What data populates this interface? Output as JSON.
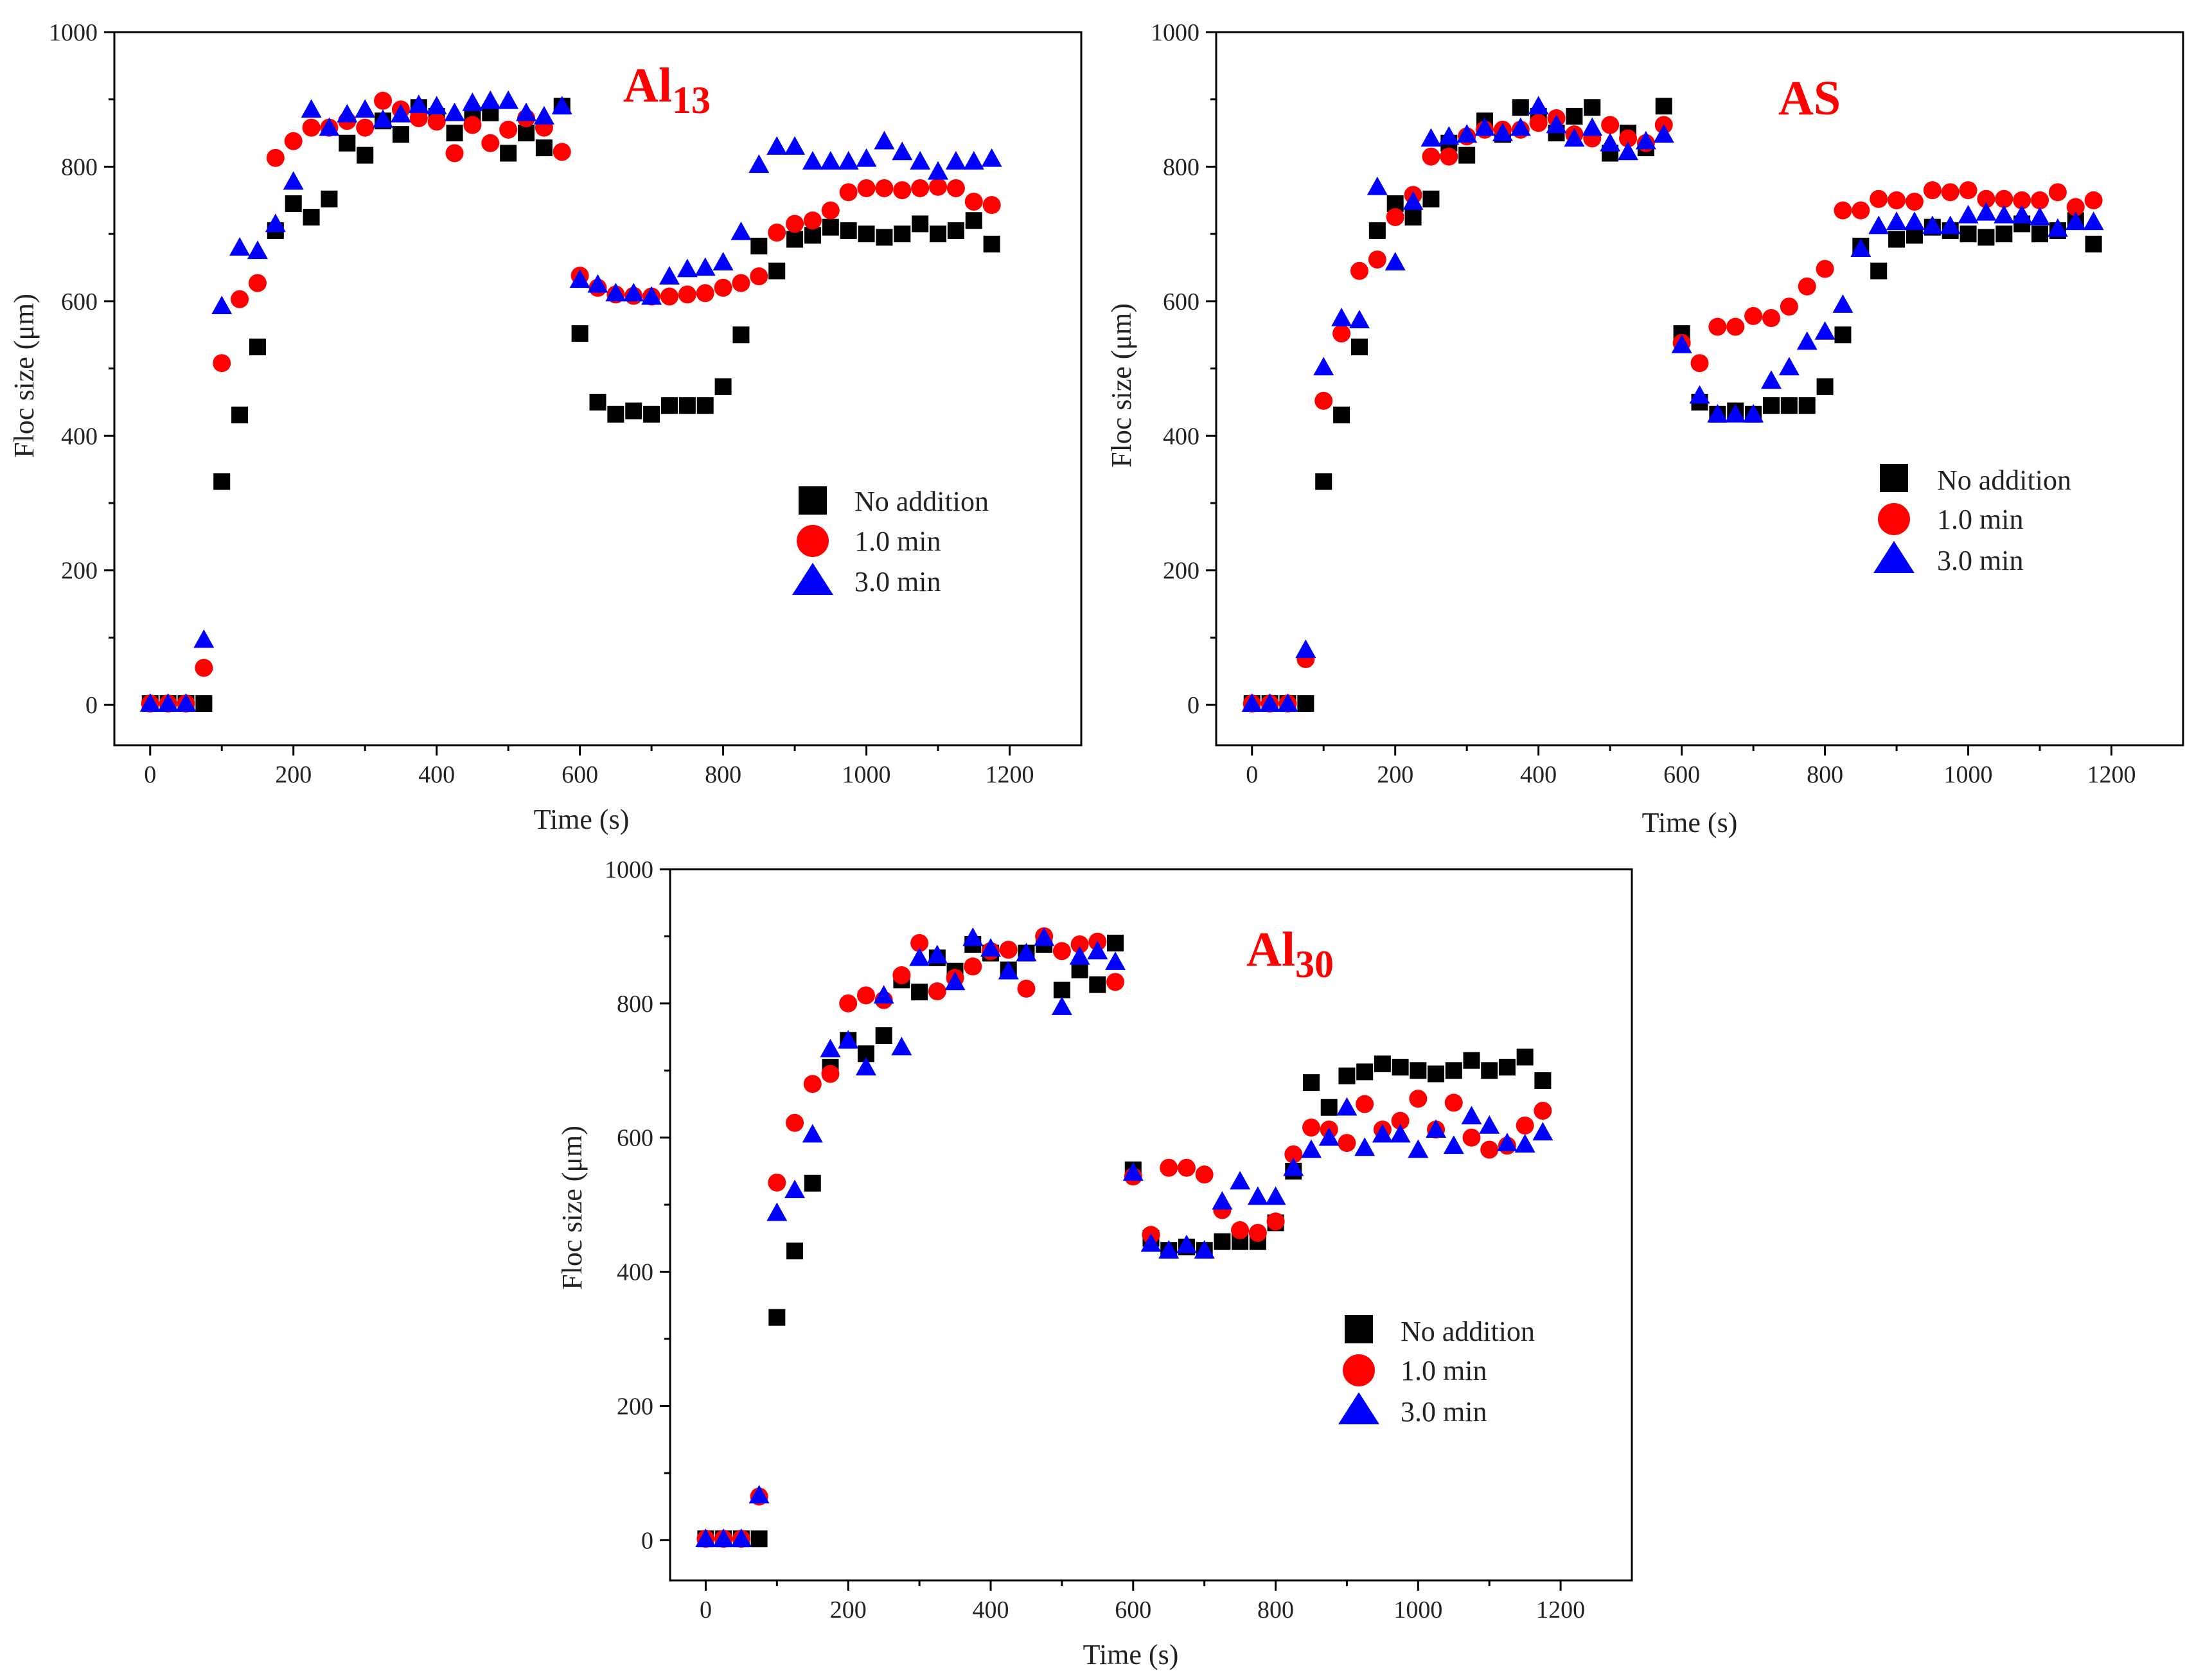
{
  "figure": {
    "background": "#ffffff"
  },
  "series_style": [
    {
      "name": "No addition",
      "marker": "square",
      "color": "#000000"
    },
    {
      "name": "1.0 min",
      "marker": "circle",
      "color": "#ff0000"
    },
    {
      "name": "3.0 min",
      "marker": "triangle",
      "color": "#0000ff"
    }
  ],
  "chart_data": [
    {
      "type": "scatter",
      "title": "Al",
      "title_subscript": "13",
      "xlabel": "Time (s)",
      "ylabel": "Floc size (μm)",
      "xlim": [
        -50,
        1300
      ],
      "ylim": [
        -60,
        1000
      ],
      "xticks": [
        0,
        200,
        400,
        600,
        800,
        1000,
        1200
      ],
      "yticks": [
        0,
        200,
        400,
        600,
        800,
        1000
      ],
      "legend": [
        "No addition",
        "1.0 min",
        "3.0 min"
      ],
      "legend_position": "right-center",
      "x": [
        0,
        25,
        50,
        75,
        100,
        125,
        150,
        175,
        200,
        225,
        250,
        275,
        300,
        325,
        350,
        375,
        400,
        425,
        450,
        475,
        500,
        525,
        550,
        575,
        600,
        625,
        650,
        675,
        700,
        725,
        750,
        775,
        800,
        825,
        850,
        875,
        900,
        925,
        950,
        975,
        1000,
        1025,
        1050,
        1075,
        1100,
        1125,
        1150,
        1175
      ],
      "series": [
        {
          "name": "No addition",
          "values": [
            2,
            2,
            2,
            2,
            332,
            431,
            532,
            705,
            745,
            725,
            752,
            835,
            817,
            868,
            848,
            888,
            875,
            850,
            875,
            880,
            820,
            850,
            828,
            890,
            552,
            450,
            432,
            437,
            432,
            445,
            445,
            445,
            473,
            550,
            682,
            645,
            692,
            698,
            710,
            705,
            700,
            695,
            700,
            715,
            700,
            705,
            720,
            685
          ]
        },
        {
          "name": "1.0 min",
          "values": [
            2,
            2,
            2,
            55,
            508,
            603,
            627,
            813,
            838,
            858,
            858,
            868,
            858,
            898,
            885,
            872,
            867,
            820,
            862,
            835,
            855,
            872,
            858,
            822,
            638,
            620,
            610,
            608,
            607,
            607,
            610,
            612,
            620,
            627,
            637,
            702,
            715,
            720,
            735,
            762,
            768,
            768,
            765,
            768,
            770,
            768,
            748,
            743
          ]
        },
        {
          "name": "3.0 min",
          "values": [
            2,
            2,
            2,
            97,
            593,
            680,
            675,
            715,
            778,
            885,
            858,
            878,
            885,
            870,
            878,
            892,
            890,
            880,
            895,
            898,
            898,
            880,
            875,
            890,
            632,
            625,
            612,
            612,
            607,
            637,
            648,
            650,
            658,
            703,
            803,
            830,
            830,
            808,
            808,
            808,
            812,
            838,
            822,
            808,
            793,
            808,
            808,
            812
          ]
        }
      ]
    },
    {
      "type": "scatter",
      "title": "AS",
      "title_subscript": "",
      "xlabel": "Time (s)",
      "ylabel": "Floc size (μm)",
      "xlim": [
        -50,
        1300
      ],
      "ylim": [
        -60,
        1000
      ],
      "xticks": [
        0,
        200,
        400,
        600,
        800,
        1000,
        1200
      ],
      "yticks": [
        0,
        200,
        400,
        600,
        800,
        1000
      ],
      "legend": [
        "No addition",
        "1.0 min",
        "3.0 min"
      ],
      "legend_position": "right-center",
      "x": [
        0,
        25,
        50,
        75,
        100,
        125,
        150,
        175,
        200,
        225,
        250,
        275,
        300,
        325,
        350,
        375,
        400,
        425,
        450,
        475,
        500,
        525,
        550,
        575,
        600,
        625,
        650,
        675,
        700,
        725,
        750,
        775,
        800,
        825,
        850,
        875,
        900,
        925,
        950,
        975,
        1000,
        1025,
        1050,
        1075,
        1100,
        1125,
        1150,
        1175
      ],
      "series": [
        {
          "name": "No addition",
          "values": [
            2,
            2,
            2,
            2,
            332,
            431,
            532,
            705,
            745,
            725,
            752,
            835,
            817,
            868,
            848,
            888,
            875,
            850,
            875,
            888,
            820,
            850,
            828,
            890,
            552,
            450,
            432,
            437,
            432,
            445,
            445,
            445,
            473,
            550,
            682,
            645,
            692,
            698,
            710,
            705,
            700,
            695,
            700,
            715,
            700,
            705,
            720,
            685
          ]
        },
        {
          "name": "1.0 min",
          "values": [
            2,
            2,
            2,
            68,
            452,
            552,
            645,
            662,
            725,
            758,
            815,
            815,
            845,
            855,
            855,
            855,
            865,
            872,
            848,
            842,
            862,
            842,
            835,
            862,
            538,
            508,
            562,
            562,
            578,
            575,
            592,
            622,
            648,
            735,
            735,
            752,
            750,
            748,
            765,
            762,
            765,
            752,
            752,
            750,
            750,
            762,
            740,
            750
          ]
        },
        {
          "name": "3.0 min",
          "values": [
            2,
            2,
            2,
            82,
            502,
            575,
            572,
            770,
            658,
            748,
            842,
            845,
            848,
            858,
            850,
            858,
            890,
            862,
            842,
            858,
            835,
            822,
            838,
            848,
            535,
            460,
            432,
            432,
            432,
            482,
            502,
            540,
            555,
            595,
            678,
            712,
            718,
            718,
            712,
            712,
            728,
            732,
            728,
            728,
            725,
            708,
            718,
            718
          ]
        }
      ]
    },
    {
      "type": "scatter",
      "title": "Al",
      "title_subscript": "30",
      "xlabel": "Time (s)",
      "ylabel": "Floc size (μm)",
      "xlim": [
        -50,
        1300
      ],
      "ylim": [
        -60,
        1000
      ],
      "xticks": [
        0,
        200,
        400,
        600,
        800,
        1000,
        1200
      ],
      "yticks": [
        0,
        200,
        400,
        600,
        800,
        1000
      ],
      "legend": [
        "No addition",
        "1.0 min",
        "3.0 min"
      ],
      "legend_position": "right-center",
      "x": [
        0,
        25,
        50,
        75,
        100,
        125,
        150,
        175,
        200,
        225,
        250,
        275,
        300,
        325,
        350,
        375,
        400,
        425,
        450,
        475,
        500,
        525,
        550,
        575,
        600,
        625,
        650,
        675,
        700,
        725,
        750,
        775,
        800,
        825,
        850,
        875,
        900,
        925,
        950,
        975,
        1000,
        1025,
        1050,
        1075,
        1100,
        1125,
        1150,
        1175
      ],
      "series": [
        {
          "name": "No addition",
          "values": [
            2,
            2,
            2,
            2,
            332,
            431,
            532,
            705,
            745,
            725,
            752,
            835,
            817,
            868,
            848,
            888,
            875,
            850,
            875,
            888,
            820,
            850,
            828,
            890,
            552,
            450,
            432,
            437,
            432,
            445,
            445,
            445,
            473,
            550,
            682,
            645,
            692,
            698,
            710,
            705,
            700,
            695,
            700,
            715,
            700,
            705,
            720,
            685
          ]
        },
        {
          "name": "1.0 min",
          "values": [
            2,
            2,
            2,
            65,
            533,
            622,
            680,
            695,
            800,
            812,
            805,
            842,
            890,
            818,
            838,
            855,
            878,
            880,
            822,
            900,
            878,
            888,
            892,
            832,
            542,
            455,
            555,
            555,
            545,
            492,
            462,
            458,
            475,
            575,
            615,
            612,
            592,
            650,
            612,
            625,
            658,
            612,
            652,
            600,
            582,
            588,
            618,
            640
          ]
        },
        {
          "name": "3.0 min",
          "values": [
            2,
            2,
            2,
            67,
            488,
            522,
            605,
            732,
            745,
            705,
            812,
            735,
            868,
            872,
            832,
            898,
            882,
            848,
            875,
            898,
            795,
            870,
            878,
            862,
            548,
            442,
            432,
            440,
            432,
            505,
            535,
            512,
            512,
            555,
            582,
            600,
            645,
            585,
            605,
            605,
            582,
            612,
            588,
            632,
            618,
            592,
            590,
            608
          ]
        }
      ]
    }
  ]
}
